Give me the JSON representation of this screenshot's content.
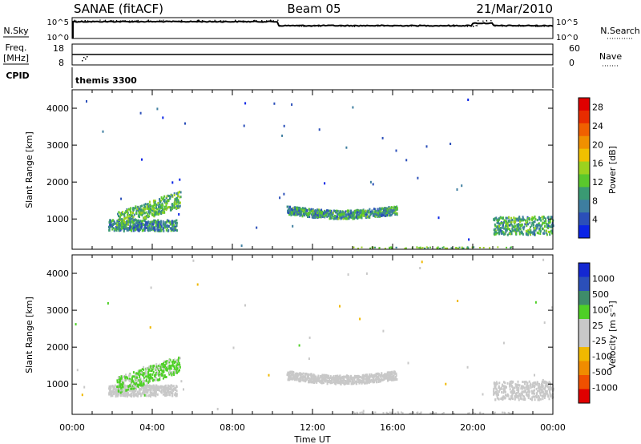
{
  "header": {
    "station": "SANAE (fitACF)",
    "beam": "Beam 05",
    "date": "21/Mar/2010"
  },
  "params": {
    "nsky_label": "N.Sky",
    "nsky_ticks": [
      "10^5",
      "10^0"
    ],
    "nsearch_label": "N.Search",
    "nsearch_ticks": [
      "10^5",
      "10^0"
    ],
    "freq_label_1": "Freq.",
    "freq_label_2": "[MHz]",
    "freq_ticks": [
      "18",
      "8"
    ],
    "nave_label": "Nave",
    "nave_ticks": [
      "60",
      "0"
    ],
    "cpid_label": "CPID",
    "cpid_value": "themis 3300"
  },
  "x_axis": {
    "label": "Time UT",
    "ticks": [
      "00:00",
      "04:00",
      "08:00",
      "12:00",
      "16:00",
      "20:00",
      "00:00"
    ],
    "range_hours": [
      0,
      24
    ]
  },
  "colors": {
    "power": [
      "#0a24e6",
      "#2b4fb9",
      "#3e7ea0",
      "#3a9a73",
      "#5ac82c",
      "#9cd21e",
      "#f0c000",
      "#f09000",
      "#f06000",
      "#e82c00",
      "#e00000"
    ],
    "velocity": [
      "#e00000",
      "#f05000",
      "#f08c00",
      "#f0b800",
      "#c8c8c8",
      "#c8c8c8",
      "#4ed026",
      "#3e8c6a",
      "#2b4fb9",
      "#1428d2"
    ]
  },
  "chart_data": [
    {
      "type": "heatmap",
      "title": "",
      "xlabel": "",
      "ylabel": "Slant Range [km]",
      "xlim_hours": [
        0,
        24
      ],
      "ylim": [
        180,
        4500
      ],
      "yticks": [
        1000,
        2000,
        3000,
        4000
      ],
      "colorbar_label": "Power [dB]",
      "colorbar_ticks": [
        "4",
        "8",
        "12",
        "16",
        "20",
        "24",
        "28"
      ],
      "colorbar_range": [
        0,
        30
      ],
      "regions": [
        {
          "t": [
            1.8,
            5.2
          ],
          "r": [
            700,
            1000
          ],
          "val": 6
        },
        {
          "t": [
            2.2,
            5.4
          ],
          "r": [
            1050,
            1500
          ],
          "val": 9,
          "slope": 600
        },
        {
          "t": [
            10.7,
            16.2
          ],
          "r": [
            1150,
            1380
          ],
          "val": 7
        },
        {
          "t": [
            21.0,
            24.0
          ],
          "r": [
            600,
            1100
          ],
          "val": 8
        }
      ]
    },
    {
      "type": "heatmap",
      "title": "",
      "xlabel": "Time UT",
      "ylabel": "Slant Range [km]",
      "xlim_hours": [
        0,
        24
      ],
      "ylim": [
        180,
        4500
      ],
      "yticks": [
        1000,
        2000,
        3000,
        4000
      ],
      "colorbar_label": "Velocity [m s⁻¹]",
      "colorbar_ticks": [
        "1000",
        "500",
        "100",
        "25",
        "-25",
        "-100",
        "-500",
        "-1000"
      ],
      "colorbar_range": [
        -1200,
        1200
      ],
      "regions": [
        {
          "t": [
            1.8,
            5.2
          ],
          "r": [
            700,
            1000
          ],
          "val": -60
        },
        {
          "t": [
            2.2,
            5.4
          ],
          "r": [
            1050,
            1500
          ],
          "val": 300,
          "slope": 600
        },
        {
          "t": [
            10.7,
            16.2
          ],
          "r": [
            1150,
            1380
          ],
          "val": 0
        },
        {
          "t": [
            21.0,
            24.0
          ],
          "r": [
            600,
            1100
          ],
          "val": 40
        }
      ]
    }
  ]
}
